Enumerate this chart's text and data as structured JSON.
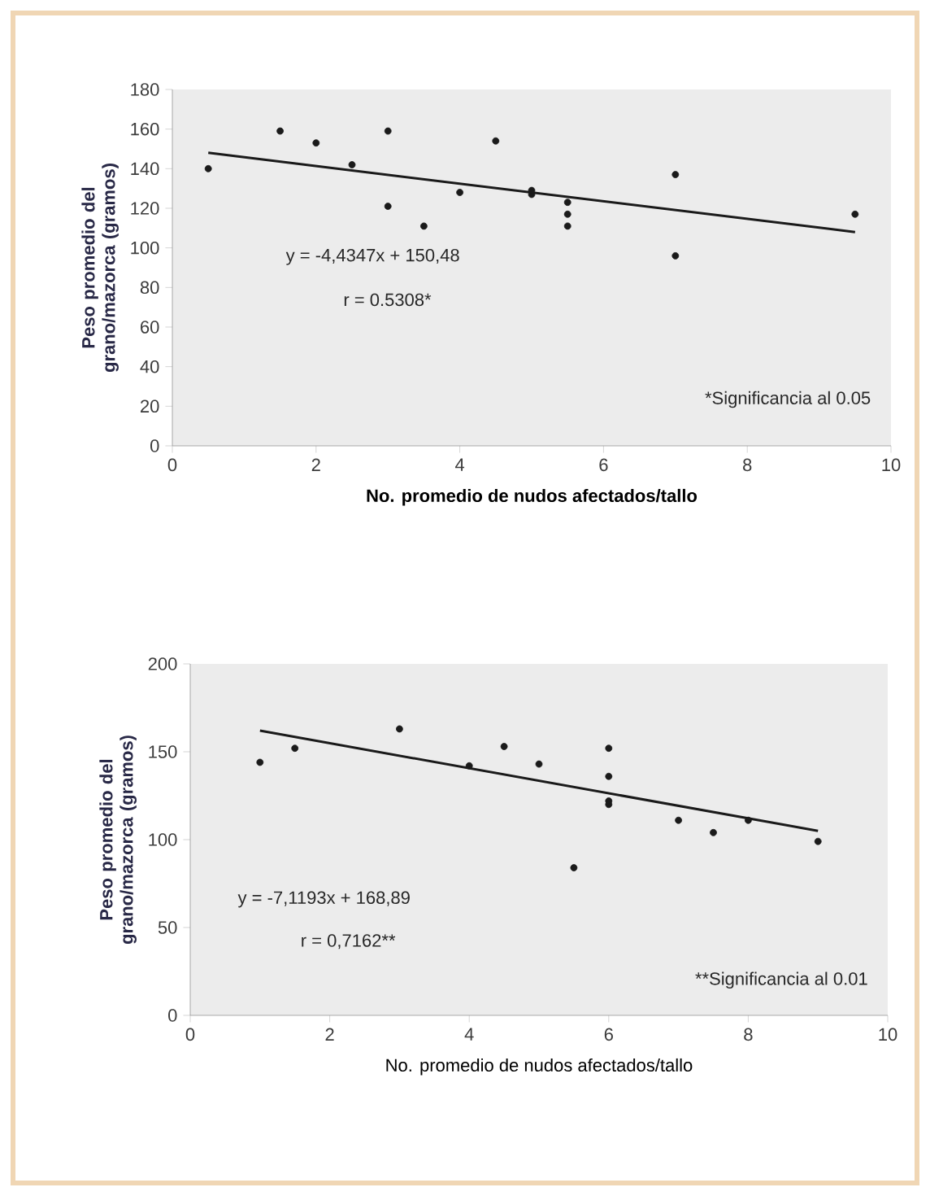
{
  "chart_data": [
    {
      "type": "scatter",
      "xlabel": "No. promedio de nudos afectados/tallo",
      "ylabel": "Peso promedio del grano/mazorca (gramos)",
      "xlim": [
        0,
        10
      ],
      "ylim": [
        0,
        180
      ],
      "xticks": [
        0,
        2,
        4,
        6,
        8,
        10
      ],
      "yticks": [
        0,
        20,
        40,
        60,
        80,
        100,
        120,
        140,
        160,
        180
      ],
      "series": [
        {
          "color": "#1a1a1a",
          "marker": "circle",
          "x": [
            0.5,
            1.5,
            2,
            2.5,
            3,
            3,
            3.5,
            4,
            4.5,
            5,
            5,
            5.5,
            5.5,
            5.5,
            7,
            7,
            9.5
          ],
          "values": [
            140,
            159,
            153,
            142,
            159,
            121,
            111,
            128,
            154,
            127,
            129,
            123,
            117,
            111,
            137,
            96,
            117
          ]
        },
        {
          "type": "line",
          "marker": "none",
          "line_style": "solid",
          "color": "#1a1a1a",
          "x": [
            0.5,
            9.5
          ],
          "values": [
            148,
            108
          ]
        }
      ],
      "annotations": [
        "y = -4,4347x + 150,48",
        "r = 0.5308*",
        "*Significancia  al 0.05"
      ]
    },
    {
      "type": "scatter",
      "xlabel": "No. promedio de nudos afectados/tallo",
      "ylabel": "Peso promedio del grano/mazorca (gramos)",
      "xlim": [
        0,
        10
      ],
      "ylim": [
        0,
        200
      ],
      "xticks": [
        0,
        2,
        4,
        6,
        8,
        10
      ],
      "yticks": [
        0,
        50,
        100,
        150,
        200
      ],
      "series": [
        {
          "color": "#1a1a1a",
          "marker": "circle",
          "x": [
            1,
            1.5,
            3,
            4,
            4.5,
            5,
            5.5,
            6,
            6,
            6,
            6,
            7,
            7.5,
            8,
            9
          ],
          "values": [
            144,
            152,
            163,
            142,
            153,
            143,
            84,
            152,
            136,
            122,
            120,
            111,
            104,
            111,
            99
          ]
        },
        {
          "type": "line",
          "marker": "none",
          "line_style": "solid",
          "color": "#1a1a1a",
          "x": [
            1,
            9
          ],
          "values": [
            162,
            105
          ]
        }
      ],
      "annotations": [
        "y = -7,1193x + 168,89",
        "r = 0,7162**",
        "**Significancia  al 0.01"
      ]
    }
  ]
}
